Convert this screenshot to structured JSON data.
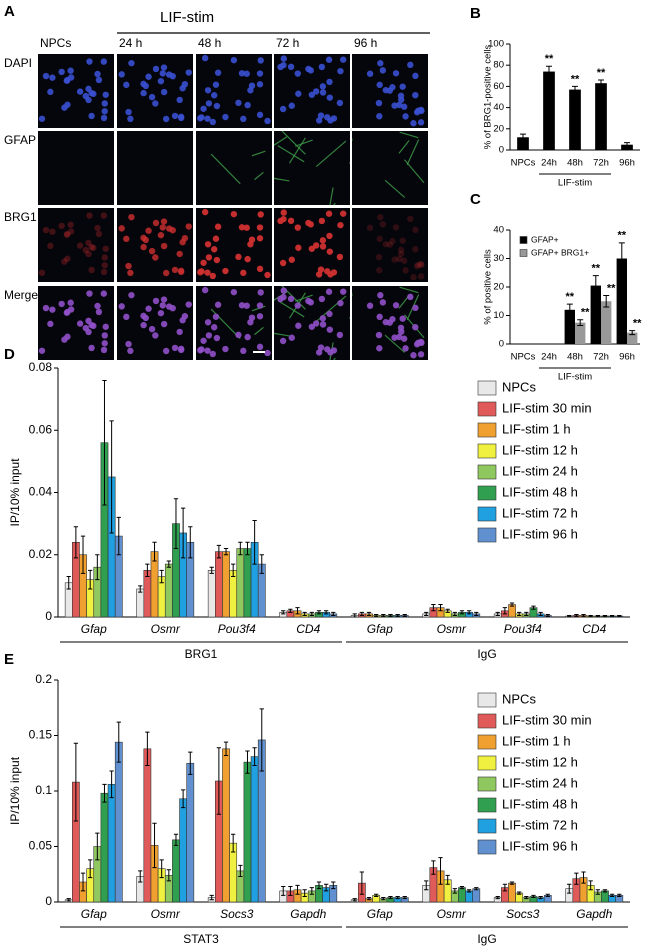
{
  "panel_a": {
    "label": "A",
    "stim_label": "LIF-stim",
    "columns": [
      "NPCs",
      "24 h",
      "48 h",
      "72 h",
      "96 h"
    ],
    "rows": [
      "DAPI",
      "GFAP",
      "BRG1",
      "Merge"
    ]
  },
  "chart_data": [
    {
      "type": "bar",
      "panel_label": "B",
      "ylabel": "% of BRG1-positive cells",
      "xlabel": "LIF-stim",
      "categories": [
        "NPCs",
        "24h",
        "48h",
        "72h",
        "96h"
      ],
      "values": [
        12,
        74,
        57,
        63,
        5
      ],
      "errors": [
        3,
        5,
        3,
        3,
        2
      ],
      "significance": [
        null,
        "**",
        "**",
        "**",
        null
      ],
      "color": "#000000",
      "ylim": [
        0,
        100
      ],
      "yticks": [
        0,
        20,
        40,
        60,
        80,
        100
      ]
    },
    {
      "type": "bar",
      "panel_label": "C",
      "ylabel": "% of positive cells",
      "xlabel": "LIF-stim",
      "categories": [
        "NPCs",
        "24h",
        "48h",
        "72h",
        "96h"
      ],
      "series": [
        {
          "name": "GFAP+",
          "color": "#000000",
          "values": [
            0,
            0,
            12,
            20.5,
            30
          ],
          "errors": [
            0,
            0,
            2,
            3.5,
            5.5
          ],
          "significance": [
            null,
            null,
            "**",
            "**",
            "**"
          ]
        },
        {
          "name": "GFAP+ BRG1+",
          "color": "#999999",
          "values": [
            0,
            0,
            7.5,
            15,
            4
          ],
          "errors": [
            0,
            0,
            1,
            2,
            0.7
          ],
          "significance": [
            null,
            null,
            "**",
            "**",
            "**"
          ]
        }
      ],
      "ylim": [
        0,
        40
      ],
      "yticks": [
        0,
        10,
        20,
        30,
        40
      ],
      "legend": "top-left"
    },
    {
      "type": "bar",
      "panel_label": "D",
      "ylabel": "IP/10% input",
      "categories": [
        "Gfap",
        "Osmr",
        "Pou3f4",
        "CD4",
        "Gfap",
        "Osmr",
        "Pou3f4",
        "CD4"
      ],
      "groups": [
        "BRG1",
        "IgG"
      ],
      "series": [
        {
          "name": "NPCs",
          "color": "#e8e8e8",
          "values": [
            0.011,
            0.009,
            0.015,
            0.0015,
            0.0005,
            0.001,
            0.001,
            0.0003
          ],
          "errors": [
            0.002,
            0.001,
            0.001,
            0.0005,
            0.0005,
            0.0005,
            0.0005,
            0.0002
          ]
        },
        {
          "name": "LIF-stim 30 min",
          "color": "#e05a5a",
          "values": [
            0.024,
            0.015,
            0.021,
            0.002,
            0.001,
            0.003,
            0.002,
            0.0005
          ],
          "errors": [
            0.005,
            0.002,
            0.002,
            0.0005,
            0.0005,
            0.001,
            0.001,
            0.0003
          ]
        },
        {
          "name": "LIF-stim 1 h",
          "color": "#f0a030",
          "values": [
            0.02,
            0.021,
            0.021,
            0.002,
            0.001,
            0.003,
            0.004,
            0.0005
          ],
          "errors": [
            0.006,
            0.003,
            0.001,
            0.001,
            0.0005,
            0.001,
            0.0005,
            0.0003
          ]
        },
        {
          "name": "LIF-stim 12 h",
          "color": "#f0f040",
          "values": [
            0.012,
            0.013,
            0.015,
            0.001,
            0.0005,
            0.002,
            0.001,
            0.0003
          ],
          "errors": [
            0.003,
            0.002,
            0.002,
            0.0005,
            0.0003,
            0.0005,
            0.0005,
            0.0002
          ]
        },
        {
          "name": "LIF-stim 24 h",
          "color": "#90c860",
          "values": [
            0.016,
            0.017,
            0.022,
            0.001,
            0.0005,
            0.001,
            0.001,
            0.0003
          ],
          "errors": [
            0.004,
            0.001,
            0.002,
            0.0005,
            0.0003,
            0.0005,
            0.0005,
            0.0002
          ]
        },
        {
          "name": "LIF-stim 48 h",
          "color": "#30a050",
          "values": [
            0.056,
            0.03,
            0.022,
            0.0015,
            0.0005,
            0.0015,
            0.003,
            0.0003
          ],
          "errors": [
            0.02,
            0.008,
            0.002,
            0.0005,
            0.0003,
            0.0005,
            0.0005,
            0.0002
          ]
        },
        {
          "name": "LIF-stim 72 h",
          "color": "#20a0e0",
          "values": [
            0.045,
            0.027,
            0.024,
            0.0015,
            0.0005,
            0.0015,
            0.001,
            0.0003
          ],
          "errors": [
            0.018,
            0.008,
            0.007,
            0.0005,
            0.0003,
            0.0005,
            0.0005,
            0.0002
          ]
        },
        {
          "name": "LIF-stim 96 h",
          "color": "#6090d0",
          "values": [
            0.026,
            0.024,
            0.017,
            0.001,
            0.0005,
            0.001,
            0.0005,
            0.0003
          ],
          "errors": [
            0.006,
            0.005,
            0.003,
            0.0005,
            0.0003,
            0.0005,
            0.0003,
            0.0002
          ]
        }
      ],
      "ylim": [
        0,
        0.08
      ],
      "yticks": [
        0,
        0.02,
        0.04,
        0.06,
        0.08
      ],
      "legend": "top-right"
    },
    {
      "type": "bar",
      "panel_label": "E",
      "ylabel": "IP/10% input",
      "categories": [
        "Gfap",
        "Osmr",
        "Socs3",
        "Gapdh",
        "Gfap",
        "Osmr",
        "Socs3",
        "Gapdh"
      ],
      "groups": [
        "STAT3",
        "IgG"
      ],
      "series": [
        {
          "name": "NPCs",
          "color": "#e8e8e8",
          "values": [
            0.002,
            0.023,
            0.004,
            0.01,
            0.002,
            0.015,
            0.004,
            0.012
          ],
          "errors": [
            0.001,
            0.005,
            0.002,
            0.004,
            0.001,
            0.004,
            0.001,
            0.004
          ]
        },
        {
          "name": "LIF-stim 30 min",
          "color": "#e05a5a",
          "values": [
            0.108,
            0.138,
            0.109,
            0.01,
            0.017,
            0.031,
            0.013,
            0.021
          ],
          "errors": [
            0.035,
            0.015,
            0.03,
            0.004,
            0.01,
            0.006,
            0.003,
            0.005
          ]
        },
        {
          "name": "LIF-stim 1 h",
          "color": "#f0a030",
          "values": [
            0.018,
            0.051,
            0.138,
            0.011,
            0.003,
            0.028,
            0.017,
            0.022
          ],
          "errors": [
            0.008,
            0.02,
            0.006,
            0.004,
            0.001,
            0.012,
            0.001,
            0.005
          ]
        },
        {
          "name": "LIF-stim 12 h",
          "color": "#f0f040",
          "values": [
            0.03,
            0.03,
            0.053,
            0.008,
            0.006,
            0.02,
            0.008,
            0.015
          ],
          "errors": [
            0.008,
            0.008,
            0.008,
            0.003,
            0.001,
            0.004,
            0.001,
            0.004
          ]
        },
        {
          "name": "LIF-stim 24 h",
          "color": "#90c860",
          "values": [
            0.05,
            0.024,
            0.028,
            0.01,
            0.003,
            0.01,
            0.004,
            0.009
          ],
          "errors": [
            0.012,
            0.005,
            0.005,
            0.003,
            0.001,
            0.002,
            0.001,
            0.002
          ]
        },
        {
          "name": "LIF-stim 48 h",
          "color": "#30a050",
          "values": [
            0.098,
            0.056,
            0.126,
            0.015,
            0.004,
            0.013,
            0.005,
            0.01
          ],
          "errors": [
            0.008,
            0.005,
            0.01,
            0.003,
            0.001,
            0.001,
            0.001,
            0.001
          ]
        },
        {
          "name": "LIF-stim 72 h",
          "color": "#20a0e0",
          "values": [
            0.106,
            0.093,
            0.131,
            0.013,
            0.004,
            0.01,
            0.004,
            0.006
          ],
          "errors": [
            0.012,
            0.008,
            0.008,
            0.003,
            0.001,
            0.001,
            0.001,
            0.001
          ]
        },
        {
          "name": "LIF-stim 96 h",
          "color": "#6090d0",
          "values": [
            0.144,
            0.125,
            0.146,
            0.015,
            0.004,
            0.012,
            0.006,
            0.006
          ],
          "errors": [
            0.018,
            0.01,
            0.028,
            0.003,
            0.001,
            0.001,
            0.001,
            0.001
          ]
        }
      ],
      "ylim": [
        0,
        0.2
      ],
      "yticks": [
        0,
        0.05,
        0.1,
        0.15,
        0.2
      ],
      "legend": "top-right"
    }
  ]
}
